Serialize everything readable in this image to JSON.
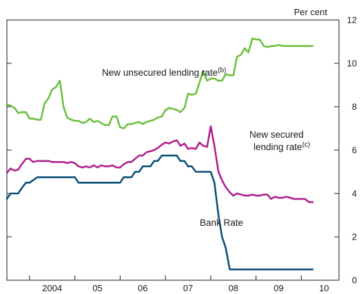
{
  "chart_data": {
    "type": "line",
    "unit_label": "Per cent",
    "ylim": [
      0,
      12
    ],
    "yticks": [
      0,
      2,
      4,
      6,
      8,
      10,
      12
    ],
    "xlim": [
      2003.5,
      2010.83
    ],
    "xtick_labels": [
      "2004",
      "05",
      "06",
      "07",
      "08",
      "09",
      "10"
    ],
    "grid": false,
    "series": [
      {
        "name": "New unsecured lending rate",
        "label_lines": [
          "New unsecured lending rate"
        ],
        "footnote": "(b)",
        "color": "#6cbf3f",
        "x": [
          2003.5,
          2003.58,
          2003.67,
          2003.75,
          2003.83,
          2003.92,
          2004.0,
          2004.08,
          2004.17,
          2004.25,
          2004.33,
          2004.42,
          2004.5,
          2004.58,
          2004.67,
          2004.75,
          2004.83,
          2004.92,
          2005.0,
          2005.08,
          2005.17,
          2005.25,
          2005.33,
          2005.42,
          2005.5,
          2005.58,
          2005.67,
          2005.75,
          2005.83,
          2005.92,
          2006.0,
          2006.08,
          2006.17,
          2006.25,
          2006.33,
          2006.42,
          2006.5,
          2006.58,
          2006.67,
          2006.75,
          2006.83,
          2006.92,
          2007.0,
          2007.08,
          2007.17,
          2007.25,
          2007.33,
          2007.42,
          2007.5,
          2007.58,
          2007.67,
          2007.75,
          2007.83,
          2007.92,
          2008.0,
          2008.08,
          2008.17,
          2008.25,
          2008.33,
          2008.42,
          2008.5,
          2008.58,
          2008.67,
          2008.75,
          2008.83,
          2008.92,
          2009.0,
          2009.08,
          2009.17,
          2009.25,
          2009.33,
          2009.42,
          2009.5,
          2009.58,
          2009.67,
          2009.75,
          2009.83,
          2009.92,
          2010.0,
          2010.08,
          2010.17,
          2010.25
        ],
        "values": [
          8.1,
          8.05,
          7.95,
          7.7,
          7.75,
          7.75,
          7.45,
          7.45,
          7.4,
          7.4,
          8.15,
          8.4,
          8.8,
          8.9,
          9.2,
          8.0,
          7.5,
          7.4,
          7.35,
          7.35,
          7.25,
          7.3,
          7.45,
          7.3,
          7.35,
          7.25,
          7.15,
          7.15,
          7.55,
          7.55,
          7.05,
          7.0,
          7.2,
          7.2,
          7.25,
          7.3,
          7.2,
          7.3,
          7.35,
          7.4,
          7.5,
          7.55,
          7.85,
          7.95,
          7.9,
          7.85,
          7.75,
          7.95,
          8.6,
          8.55,
          8.6,
          9.1,
          9.65,
          9.2,
          9.3,
          9.3,
          9.2,
          9.2,
          9.5,
          9.45,
          9.45,
          10.3,
          10.4,
          10.7,
          10.5,
          11.15,
          11.1,
          11.1,
          10.8,
          10.75,
          10.8,
          10.8,
          10.85,
          10.8,
          10.8,
          10.8,
          10.8,
          10.8,
          10.8,
          10.8,
          10.8,
          10.8
        ]
      },
      {
        "name": "New secured lending rate",
        "label_lines": [
          "New secured",
          "lending rate"
        ],
        "footnote": "(c)",
        "color": "#b01f8e",
        "x": [
          2003.5,
          2003.58,
          2003.67,
          2003.75,
          2003.83,
          2003.92,
          2004.0,
          2004.08,
          2004.17,
          2004.25,
          2004.33,
          2004.42,
          2004.5,
          2004.58,
          2004.67,
          2004.75,
          2004.83,
          2004.92,
          2005.0,
          2005.08,
          2005.17,
          2005.25,
          2005.33,
          2005.42,
          2005.5,
          2005.58,
          2005.67,
          2005.75,
          2005.83,
          2005.92,
          2006.0,
          2006.08,
          2006.17,
          2006.25,
          2006.33,
          2006.42,
          2006.5,
          2006.58,
          2006.67,
          2006.75,
          2006.83,
          2006.92,
          2007.0,
          2007.08,
          2007.17,
          2007.25,
          2007.33,
          2007.42,
          2007.5,
          2007.58,
          2007.67,
          2007.75,
          2007.83,
          2007.92,
          2008.0,
          2008.08,
          2008.17,
          2008.25,
          2008.33,
          2008.42,
          2008.5,
          2008.58,
          2008.67,
          2008.75,
          2008.83,
          2008.92,
          2009.0,
          2009.08,
          2009.17,
          2009.25,
          2009.33,
          2009.42,
          2009.5,
          2009.58,
          2009.67,
          2009.75,
          2009.83,
          2009.92,
          2010.0,
          2010.08,
          2010.17,
          2010.25
        ],
        "values": [
          4.95,
          5.15,
          5.05,
          5.1,
          5.35,
          5.6,
          5.6,
          5.45,
          5.5,
          5.5,
          5.5,
          5.5,
          5.45,
          5.45,
          5.45,
          5.45,
          5.4,
          5.45,
          5.4,
          5.25,
          5.2,
          5.25,
          5.2,
          5.3,
          5.2,
          5.3,
          5.25,
          5.25,
          5.3,
          5.2,
          5.2,
          5.35,
          5.45,
          5.45,
          5.6,
          5.75,
          5.75,
          5.9,
          5.95,
          6.0,
          6.1,
          6.25,
          6.35,
          6.3,
          6.4,
          6.45,
          6.2,
          6.3,
          6.05,
          6.1,
          6.05,
          6.35,
          6.2,
          6.15,
          7.1,
          6.2,
          5.0,
          4.6,
          4.3,
          4.05,
          3.9,
          4.0,
          3.95,
          3.9,
          3.9,
          3.95,
          3.9,
          3.9,
          3.95,
          3.95,
          3.75,
          3.85,
          3.8,
          3.8,
          3.85,
          3.8,
          3.75,
          3.75,
          3.75,
          3.75,
          3.6,
          3.6
        ]
      },
      {
        "name": "Bank Rate",
        "label_lines": [
          "Bank Rate"
        ],
        "footnote": "",
        "color": "#0d4f7a",
        "x": [
          2003.5,
          2003.58,
          2003.75,
          2003.83,
          2003.92,
          2004.0,
          2004.17,
          2004.25,
          2004.33,
          2004.42,
          2004.5,
          2004.58,
          2004.67,
          2004.75,
          2004.83,
          2004.92,
          2005.0,
          2005.08,
          2005.17,
          2005.33,
          2005.42,
          2005.5,
          2005.58,
          2005.67,
          2005.75,
          2005.83,
          2005.92,
          2006.0,
          2006.08,
          2006.17,
          2006.25,
          2006.33,
          2006.42,
          2006.5,
          2006.58,
          2006.67,
          2006.75,
          2006.83,
          2006.92,
          2007.0,
          2007.08,
          2007.17,
          2007.25,
          2007.33,
          2007.42,
          2007.5,
          2007.58,
          2007.67,
          2007.75,
          2007.83,
          2007.92,
          2008.0,
          2008.08,
          2008.17,
          2008.25,
          2008.33,
          2008.42,
          2008.5,
          2008.58,
          2008.67,
          2008.75,
          2008.83,
          2009.0,
          2009.25,
          2009.5,
          2009.75,
          2010.0,
          2010.25
        ],
        "values": [
          3.75,
          4.0,
          4.0,
          4.25,
          4.5,
          4.5,
          4.75,
          4.75,
          4.75,
          4.75,
          4.75,
          4.75,
          4.75,
          4.75,
          4.75,
          4.75,
          4.75,
          4.5,
          4.5,
          4.5,
          4.5,
          4.5,
          4.5,
          4.5,
          4.5,
          4.5,
          4.5,
          4.5,
          4.75,
          4.75,
          4.75,
          5.0,
          5.0,
          5.25,
          5.25,
          5.25,
          5.5,
          5.5,
          5.75,
          5.75,
          5.75,
          5.75,
          5.75,
          5.5,
          5.5,
          5.25,
          5.25,
          5.0,
          5.0,
          5.0,
          5.0,
          5.0,
          4.5,
          3.0,
          2.0,
          1.5,
          0.5,
          0.5,
          0.5,
          0.5,
          0.5,
          0.5,
          0.5,
          0.5,
          0.5,
          0.5,
          0.5,
          0.5
        ]
      }
    ]
  }
}
